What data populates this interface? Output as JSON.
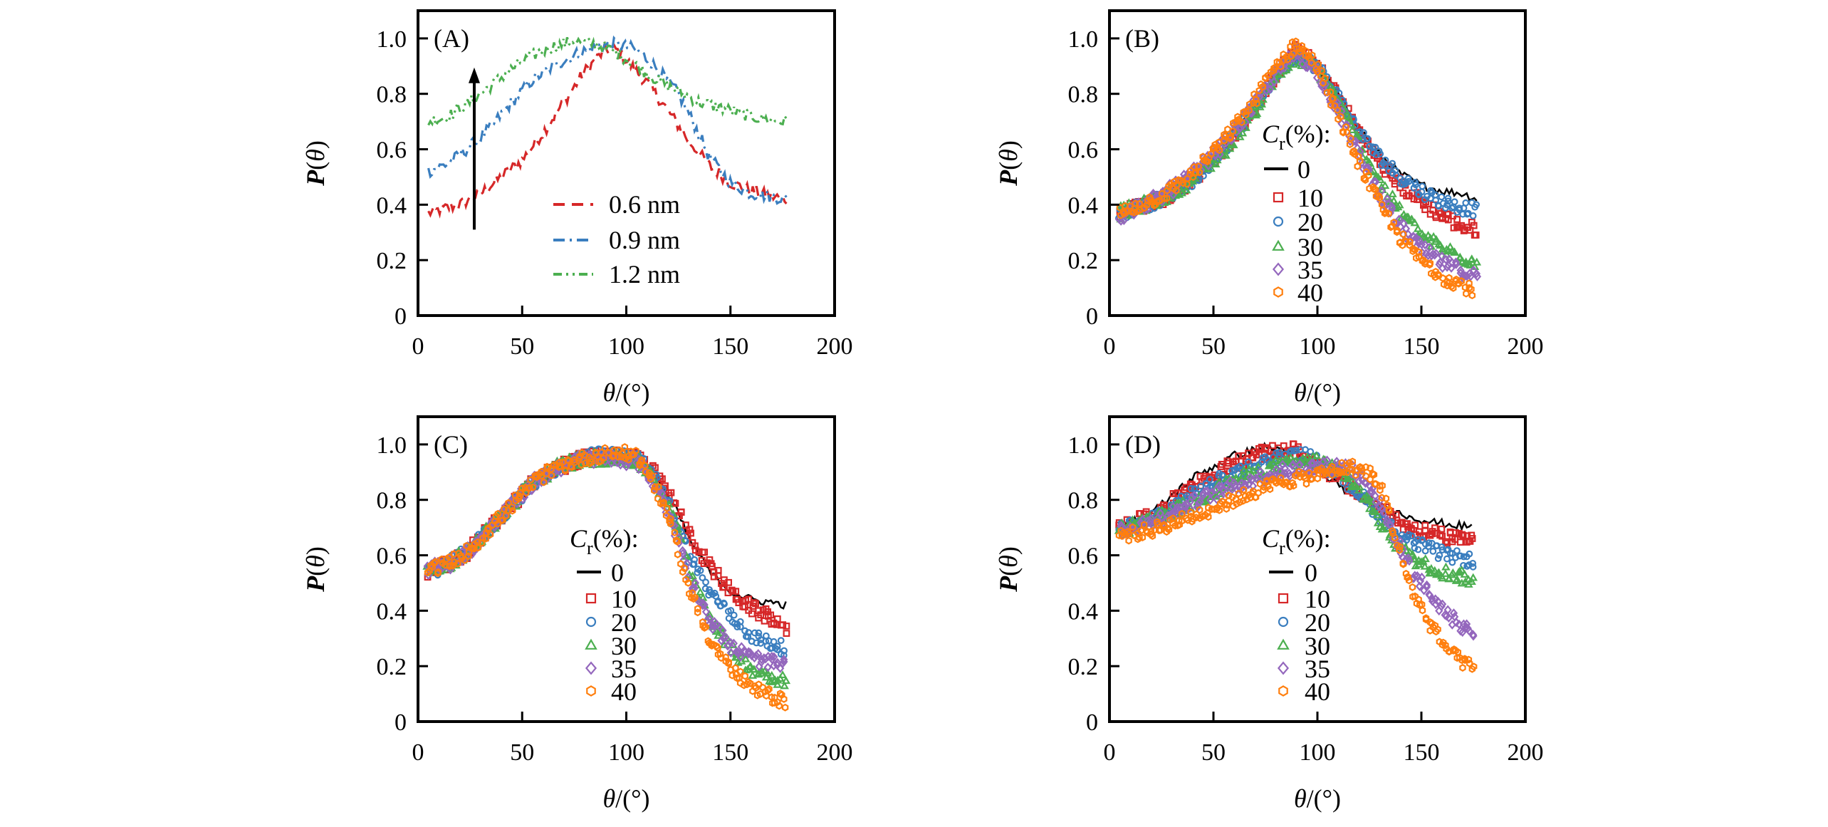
{
  "chart_data": [
    {
      "panel": "A",
      "type": "line",
      "tag": "(A)",
      "xlabel": "θ/(°)",
      "ylabel": "P(θ)",
      "xlim": [
        0,
        200
      ],
      "ylim": [
        0,
        1.1
      ],
      "xticks": [
        0,
        50,
        100,
        150,
        200
      ],
      "yticks": [
        0,
        0.2,
        0.4,
        0.6,
        0.8,
        1.0
      ],
      "ytick_labels": [
        "0",
        "0.2",
        "0.4",
        "0.6",
        "0.8",
        "1.0"
      ],
      "legend_title": "",
      "legend_position": "center-bottom",
      "annotation": {
        "type": "arrow",
        "x": 27,
        "y_from": 0.31,
        "y_to": 0.89,
        "meaning": "increasing size"
      },
      "series": [
        {
          "name": "0.6 nm",
          "color": "#d62728",
          "style": "dashed",
          "x": [
            5,
            20,
            30,
            40,
            50,
            60,
            70,
            80,
            90,
            95,
            100,
            110,
            120,
            130,
            140,
            150,
            160,
            170,
            177
          ],
          "y": [
            0.37,
            0.4,
            0.44,
            0.5,
            0.56,
            0.66,
            0.77,
            0.88,
            0.96,
            0.96,
            0.92,
            0.84,
            0.74,
            0.63,
            0.54,
            0.48,
            0.45,
            0.43,
            0.42
          ]
        },
        {
          "name": "0.9 nm",
          "color": "#3a7ebf",
          "style": "dashdot",
          "x": [
            5,
            15,
            25,
            35,
            45,
            55,
            65,
            75,
            85,
            95,
            105,
            115,
            125,
            132,
            140,
            150,
            160,
            170,
            177
          ],
          "y": [
            0.52,
            0.55,
            0.61,
            0.68,
            0.77,
            0.85,
            0.9,
            0.94,
            0.97,
            0.98,
            0.96,
            0.89,
            0.8,
            0.7,
            0.57,
            0.48,
            0.44,
            0.43,
            0.42
          ]
        },
        {
          "name": "1.2 nm",
          "color": "#4caf50",
          "style": "dashdotdot",
          "x": [
            5,
            15,
            25,
            35,
            45,
            55,
            65,
            75,
            85,
            95,
            105,
            115,
            125,
            135,
            145,
            155,
            165,
            177
          ],
          "y": [
            0.7,
            0.72,
            0.77,
            0.83,
            0.89,
            0.94,
            0.97,
            0.99,
            0.98,
            0.95,
            0.9,
            0.85,
            0.81,
            0.77,
            0.75,
            0.73,
            0.71,
            0.7
          ]
        }
      ]
    },
    {
      "panel": "B",
      "type": "scatter",
      "tag": "(B)",
      "xlabel": "θ/(°)",
      "ylabel": "P(θ)",
      "xlim": [
        0,
        200
      ],
      "ylim": [
        0,
        1.1
      ],
      "xticks": [
        0,
        50,
        100,
        150,
        200
      ],
      "yticks": [
        0,
        0.2,
        0.4,
        0.6,
        0.8,
        1.0
      ],
      "ytick_labels": [
        "0",
        "0.2",
        "0.4",
        "0.6",
        "0.8",
        "1.0"
      ],
      "legend_title": "Cr(%):",
      "legend_position": "center",
      "series": [
        {
          "name": "0",
          "color": "#000000",
          "marker": "line",
          "x": [
            5,
            25,
            40,
            55,
            70,
            80,
            90,
            100,
            110,
            120,
            130,
            140,
            150,
            160,
            170,
            177
          ],
          "y": [
            0.37,
            0.42,
            0.49,
            0.6,
            0.75,
            0.87,
            0.96,
            0.9,
            0.8,
            0.68,
            0.58,
            0.51,
            0.47,
            0.45,
            0.44,
            0.42
          ]
        },
        {
          "name": "10",
          "color": "#d62728",
          "marker": "square",
          "x": [
            5,
            25,
            40,
            55,
            70,
            80,
            90,
            100,
            110,
            120,
            130,
            140,
            150,
            160,
            170,
            177
          ],
          "y": [
            0.37,
            0.42,
            0.49,
            0.6,
            0.75,
            0.87,
            0.96,
            0.9,
            0.79,
            0.66,
            0.55,
            0.47,
            0.41,
            0.36,
            0.32,
            0.31
          ]
        },
        {
          "name": "20",
          "color": "#3a7ebf",
          "marker": "circle",
          "x": [
            5,
            25,
            40,
            55,
            70,
            80,
            90,
            100,
            110,
            120,
            130,
            140,
            150,
            160,
            170,
            177
          ],
          "y": [
            0.37,
            0.42,
            0.49,
            0.6,
            0.75,
            0.87,
            0.94,
            0.9,
            0.79,
            0.66,
            0.57,
            0.5,
            0.45,
            0.41,
            0.39,
            0.38
          ]
        },
        {
          "name": "30",
          "color": "#4caf50",
          "marker": "triangle",
          "x": [
            5,
            25,
            40,
            55,
            70,
            80,
            90,
            100,
            110,
            120,
            130,
            140,
            150,
            160,
            170,
            177
          ],
          "y": [
            0.37,
            0.42,
            0.49,
            0.59,
            0.74,
            0.86,
            0.93,
            0.89,
            0.77,
            0.62,
            0.48,
            0.37,
            0.29,
            0.24,
            0.21,
            0.19
          ]
        },
        {
          "name": "35",
          "color": "#9467bd",
          "marker": "diamond",
          "x": [
            5,
            25,
            40,
            55,
            70,
            80,
            90,
            100,
            110,
            120,
            130,
            140,
            150,
            160,
            170,
            177
          ],
          "y": [
            0.36,
            0.43,
            0.51,
            0.62,
            0.76,
            0.87,
            0.95,
            0.88,
            0.74,
            0.58,
            0.44,
            0.32,
            0.24,
            0.19,
            0.16,
            0.14
          ]
        },
        {
          "name": "40",
          "color": "#ff7f0e",
          "marker": "hexagon",
          "x": [
            5,
            25,
            40,
            55,
            70,
            80,
            90,
            100,
            110,
            120,
            130,
            140,
            150,
            160,
            170,
            175
          ],
          "y": [
            0.37,
            0.43,
            0.51,
            0.63,
            0.78,
            0.9,
            0.98,
            0.9,
            0.72,
            0.55,
            0.4,
            0.28,
            0.2,
            0.14,
            0.11,
            0.09
          ]
        }
      ]
    },
    {
      "panel": "C",
      "type": "scatter",
      "tag": "(C)",
      "xlabel": "θ/(°)",
      "ylabel": "P(θ)",
      "xlim": [
        0,
        200
      ],
      "ylim": [
        0,
        1.1
      ],
      "xticks": [
        0,
        50,
        100,
        150,
        200
      ],
      "yticks": [
        0,
        0.2,
        0.4,
        0.6,
        0.8,
        1.0
      ],
      "ytick_labels": [
        "0",
        "0.2",
        "0.4",
        "0.6",
        "0.8",
        "1.0"
      ],
      "legend_title": "Cr(%):",
      "legend_position": "center",
      "series": [
        {
          "name": "0",
          "color": "#000000",
          "marker": "line",
          "x": [
            5,
            15,
            25,
            35,
            45,
            55,
            65,
            75,
            85,
            95,
            105,
            112,
            118,
            125,
            130,
            140,
            150,
            160,
            170,
            177
          ],
          "y": [
            0.53,
            0.56,
            0.61,
            0.69,
            0.77,
            0.85,
            0.9,
            0.93,
            0.95,
            0.96,
            0.95,
            0.91,
            0.84,
            0.75,
            0.66,
            0.54,
            0.47,
            0.44,
            0.43,
            0.42
          ]
        },
        {
          "name": "10",
          "color": "#d62728",
          "marker": "square",
          "x": [
            5,
            15,
            25,
            35,
            45,
            55,
            65,
            75,
            85,
            95,
            105,
            112,
            118,
            125,
            130,
            140,
            150,
            160,
            170,
            177
          ],
          "y": [
            0.54,
            0.57,
            0.62,
            0.7,
            0.78,
            0.86,
            0.91,
            0.94,
            0.96,
            0.96,
            0.95,
            0.91,
            0.85,
            0.76,
            0.68,
            0.56,
            0.47,
            0.41,
            0.37,
            0.34
          ]
        },
        {
          "name": "20",
          "color": "#3a7ebf",
          "marker": "circle",
          "x": [
            5,
            15,
            25,
            35,
            45,
            55,
            65,
            75,
            85,
            95,
            105,
            112,
            118,
            125,
            130,
            140,
            150,
            160,
            170,
            177
          ],
          "y": [
            0.54,
            0.57,
            0.62,
            0.7,
            0.78,
            0.86,
            0.91,
            0.94,
            0.96,
            0.96,
            0.95,
            0.9,
            0.82,
            0.71,
            0.6,
            0.47,
            0.38,
            0.31,
            0.28,
            0.26
          ]
        },
        {
          "name": "30",
          "color": "#4caf50",
          "marker": "triangle",
          "x": [
            5,
            15,
            25,
            35,
            45,
            55,
            65,
            75,
            85,
            95,
            105,
            112,
            118,
            125,
            130,
            140,
            150,
            160,
            170,
            177
          ],
          "y": [
            0.54,
            0.57,
            0.62,
            0.7,
            0.78,
            0.86,
            0.91,
            0.94,
            0.95,
            0.95,
            0.94,
            0.89,
            0.81,
            0.68,
            0.55,
            0.38,
            0.26,
            0.19,
            0.16,
            0.15
          ]
        },
        {
          "name": "35",
          "color": "#9467bd",
          "marker": "diamond",
          "x": [
            5,
            15,
            25,
            35,
            45,
            55,
            65,
            75,
            85,
            95,
            105,
            112,
            118,
            125,
            130,
            140,
            150,
            160,
            170,
            177
          ],
          "y": [
            0.55,
            0.57,
            0.62,
            0.7,
            0.78,
            0.86,
            0.91,
            0.94,
            0.95,
            0.95,
            0.94,
            0.88,
            0.79,
            0.66,
            0.53,
            0.37,
            0.27,
            0.23,
            0.21,
            0.2
          ]
        },
        {
          "name": "40",
          "color": "#ff7f0e",
          "marker": "hexagon",
          "x": [
            5,
            15,
            25,
            35,
            45,
            55,
            65,
            75,
            85,
            95,
            105,
            112,
            118,
            125,
            130,
            140,
            150,
            160,
            170,
            177
          ],
          "y": [
            0.55,
            0.57,
            0.62,
            0.7,
            0.78,
            0.86,
            0.91,
            0.94,
            0.96,
            0.97,
            0.96,
            0.88,
            0.78,
            0.62,
            0.48,
            0.3,
            0.19,
            0.12,
            0.09,
            0.07
          ]
        }
      ]
    },
    {
      "panel": "D",
      "type": "scatter",
      "tag": "(D)",
      "xlabel": "θ/(°)",
      "ylabel": "P(θ)",
      "xlim": [
        0,
        200
      ],
      "ylim": [
        0,
        1.1
      ],
      "xticks": [
        0,
        50,
        100,
        150,
        200
      ],
      "yticks": [
        0,
        0.2,
        0.4,
        0.6,
        0.8,
        1.0
      ],
      "ytick_labels": [
        "0",
        "0.2",
        "0.4",
        "0.6",
        "0.8",
        "1.0"
      ],
      "legend_title": "Cr(%):",
      "legend_position": "center",
      "series": [
        {
          "name": "0",
          "color": "#000000",
          "marker": "line",
          "x": [
            5,
            20,
            40,
            60,
            75,
            85,
            95,
            105,
            115,
            125,
            135,
            145,
            155,
            165,
            175
          ],
          "y": [
            0.7,
            0.75,
            0.88,
            0.96,
            0.99,
            0.98,
            0.94,
            0.88,
            0.83,
            0.79,
            0.76,
            0.74,
            0.72,
            0.71,
            0.7
          ]
        },
        {
          "name": "10",
          "color": "#d62728",
          "marker": "square",
          "x": [
            5,
            20,
            40,
            60,
            75,
            88,
            100,
            115,
            125,
            135,
            145,
            155,
            165,
            175
          ],
          "y": [
            0.7,
            0.74,
            0.85,
            0.93,
            0.97,
            0.98,
            0.93,
            0.85,
            0.79,
            0.74,
            0.7,
            0.68,
            0.66,
            0.65
          ]
        },
        {
          "name": "20",
          "color": "#3a7ebf",
          "marker": "circle",
          "x": [
            5,
            20,
            40,
            60,
            80,
            95,
            108,
            118,
            128,
            138,
            148,
            158,
            168,
            175
          ],
          "y": [
            0.69,
            0.73,
            0.82,
            0.9,
            0.95,
            0.96,
            0.9,
            0.84,
            0.76,
            0.68,
            0.64,
            0.61,
            0.59,
            0.58
          ]
        },
        {
          "name": "30",
          "color": "#4caf50",
          "marker": "triangle",
          "x": [
            5,
            20,
            40,
            60,
            80,
            100,
            112,
            122,
            132,
            140,
            150,
            160,
            170,
            175
          ],
          "y": [
            0.69,
            0.72,
            0.79,
            0.87,
            0.92,
            0.94,
            0.9,
            0.82,
            0.7,
            0.62,
            0.57,
            0.54,
            0.52,
            0.51
          ]
        },
        {
          "name": "35",
          "color": "#9467bd",
          "marker": "diamond",
          "x": [
            5,
            20,
            40,
            60,
            80,
            100,
            115,
            125,
            135,
            145,
            155,
            165,
            175
          ],
          "y": [
            0.69,
            0.72,
            0.79,
            0.85,
            0.9,
            0.92,
            0.92,
            0.86,
            0.7,
            0.55,
            0.45,
            0.37,
            0.32
          ]
        },
        {
          "name": "40",
          "color": "#ff7f0e",
          "marker": "hexagon",
          "x": [
            5,
            20,
            40,
            60,
            80,
            100,
            115,
            125,
            132,
            138,
            145,
            155,
            165,
            175
          ],
          "y": [
            0.67,
            0.69,
            0.74,
            0.8,
            0.86,
            0.89,
            0.92,
            0.9,
            0.82,
            0.65,
            0.48,
            0.34,
            0.24,
            0.19
          ]
        }
      ]
    }
  ]
}
